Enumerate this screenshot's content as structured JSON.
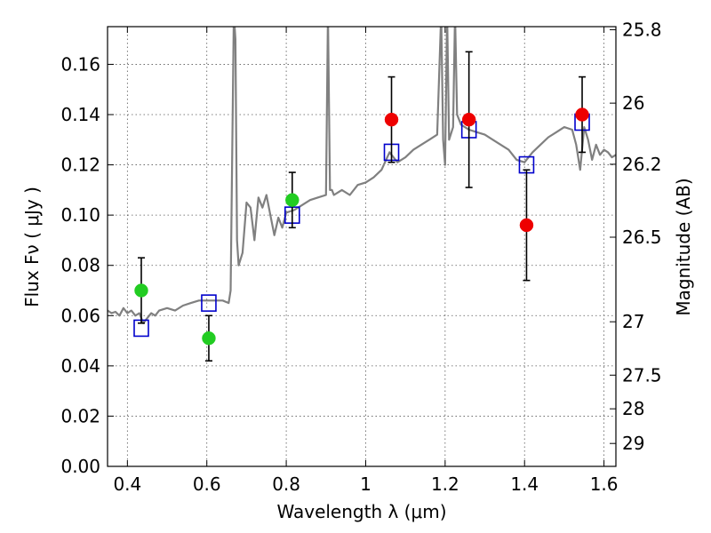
{
  "chart_data": {
    "type": "scatter",
    "xlabel": "Wavelength  λ (μm)",
    "ylabel": "Flux  Fν  ( μJy )",
    "y2label": "Magnitude (AB)",
    "xlim": [
      0.35,
      1.63
    ],
    "ylim": [
      0.0,
      0.175
    ],
    "grid": true,
    "x_ticks": [
      {
        "value": 0.4,
        "label": "0.4"
      },
      {
        "value": 0.6,
        "label": "0.6"
      },
      {
        "value": 0.8,
        "label": "0.8"
      },
      {
        "value": 1.0,
        "label": "1"
      },
      {
        "value": 1.2,
        "label": "1.2"
      },
      {
        "value": 1.4,
        "label": "1.4"
      },
      {
        "value": 1.6,
        "label": "1.6"
      }
    ],
    "y_ticks": [
      {
        "value": 0.0,
        "label": "0.00"
      },
      {
        "value": 0.02,
        "label": "0.02"
      },
      {
        "value": 0.04,
        "label": "0.04"
      },
      {
        "value": 0.06,
        "label": "0.06"
      },
      {
        "value": 0.08,
        "label": "0.08"
      },
      {
        "value": 0.1,
        "label": "0.10"
      },
      {
        "value": 0.12,
        "label": "0.12"
      },
      {
        "value": 0.14,
        "label": "0.14"
      },
      {
        "value": 0.16,
        "label": "0.16"
      }
    ],
    "y2_ticks": [
      {
        "value": 25.8,
        "label": "25.8"
      },
      {
        "value": 26.0,
        "label": "26"
      },
      {
        "value": 26.2,
        "label": "26.2"
      },
      {
        "value": 26.5,
        "label": "26.5"
      },
      {
        "value": 27.0,
        "label": "27"
      },
      {
        "value": 27.5,
        "label": "27.5"
      },
      {
        "value": 28.0,
        "label": "28"
      },
      {
        "value": 29.0,
        "label": "29"
      }
    ],
    "colors": {
      "model": "#808080",
      "model_photometry": "#0000cc",
      "green_points": "#22cc22",
      "red_points": "#ee0000",
      "error_bars": "#000000",
      "grid": "#555555"
    },
    "series": [
      {
        "kind": "line",
        "x": [
          0.35,
          0.36,
          0.37,
          0.38,
          0.39,
          0.4,
          0.41,
          0.42,
          0.43,
          0.44,
          0.45,
          0.46,
          0.47,
          0.48,
          0.5,
          0.52,
          0.54,
          0.56,
          0.58,
          0.6,
          0.62,
          0.64,
          0.655,
          0.66,
          0.665,
          0.668,
          0.672,
          0.676,
          0.68,
          0.69,
          0.7,
          0.71,
          0.72,
          0.73,
          0.74,
          0.75,
          0.76,
          0.77,
          0.78,
          0.79,
          0.8,
          0.82,
          0.84,
          0.86,
          0.88,
          0.9,
          0.905,
          0.91,
          0.915,
          0.92,
          0.94,
          0.96,
          0.98,
          1.0,
          1.02,
          1.04,
          1.06,
          1.08,
          1.1,
          1.12,
          1.14,
          1.16,
          1.18,
          1.19,
          1.195,
          1.2,
          1.205,
          1.21,
          1.22,
          1.225,
          1.23,
          1.24,
          1.26,
          1.28,
          1.3,
          1.32,
          1.34,
          1.36,
          1.38,
          1.4,
          1.42,
          1.44,
          1.46,
          1.48,
          1.5,
          1.52,
          1.53,
          1.54,
          1.55,
          1.56,
          1.57,
          1.58,
          1.59,
          1.6,
          1.61,
          1.62,
          1.63
        ],
        "y": [
          0.062,
          0.061,
          0.0615,
          0.06,
          0.063,
          0.061,
          0.062,
          0.06,
          0.061,
          0.057,
          0.059,
          0.061,
          0.06,
          0.062,
          0.063,
          0.062,
          0.064,
          0.065,
          0.066,
          0.066,
          0.066,
          0.066,
          0.065,
          0.07,
          0.14,
          0.18,
          0.17,
          0.09,
          0.08,
          0.085,
          0.105,
          0.103,
          0.09,
          0.107,
          0.103,
          0.108,
          0.1,
          0.092,
          0.099,
          0.095,
          0.101,
          0.102,
          0.104,
          0.106,
          0.107,
          0.108,
          0.18,
          0.11,
          0.11,
          0.108,
          0.11,
          0.108,
          0.112,
          0.113,
          0.115,
          0.118,
          0.125,
          0.121,
          0.123,
          0.126,
          0.128,
          0.13,
          0.132,
          0.18,
          0.13,
          0.12,
          0.18,
          0.13,
          0.135,
          0.18,
          0.14,
          0.136,
          0.134,
          0.133,
          0.132,
          0.13,
          0.128,
          0.126,
          0.122,
          0.121,
          0.125,
          0.128,
          0.131,
          0.133,
          0.135,
          0.134,
          0.128,
          0.118,
          0.135,
          0.13,
          0.122,
          0.128,
          0.124,
          0.126,
          0.125,
          0.123,
          0.124
        ]
      },
      {
        "kind": "open-squares",
        "x": [
          0.435,
          0.605,
          0.815,
          1.065,
          1.26,
          1.405,
          1.545
        ],
        "y": [
          0.055,
          0.065,
          0.1,
          0.125,
          0.134,
          0.12,
          0.137
        ]
      },
      {
        "kind": "filled-circles-green",
        "x": [
          0.435,
          0.605,
          0.815
        ],
        "y": [
          0.07,
          0.051,
          0.106
        ],
        "err": [
          0.013,
          0.009,
          0.011
        ]
      },
      {
        "kind": "filled-circles-red",
        "x": [
          1.065,
          1.26,
          1.405,
          1.545
        ],
        "y": [
          0.138,
          0.138,
          0.096,
          0.14
        ],
        "err": [
          0.017,
          0.027,
          0.022,
          0.015
        ]
      }
    ]
  }
}
